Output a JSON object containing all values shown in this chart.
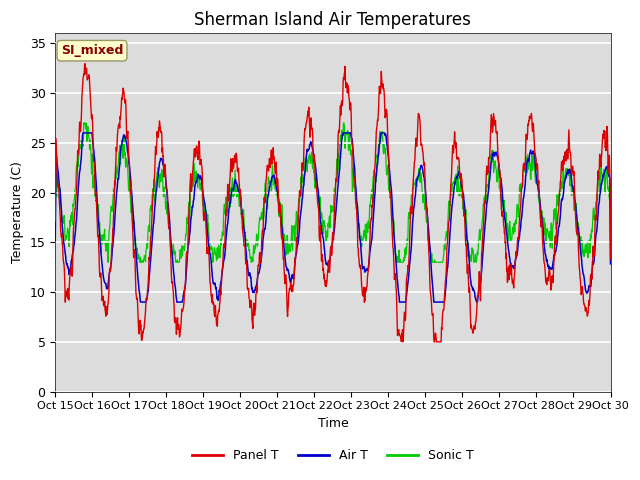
{
  "title": "Sherman Island Air Temperatures",
  "xlabel": "Time",
  "ylabel": "Temperature (C)",
  "ylim": [
    0,
    36
  ],
  "yticks": [
    0,
    5,
    10,
    15,
    20,
    25,
    30,
    35
  ],
  "xlim": [
    0,
    360
  ],
  "xtick_positions": [
    0,
    24,
    48,
    72,
    96,
    120,
    144,
    168,
    192,
    216,
    240,
    264,
    288,
    312,
    336,
    360
  ],
  "xtick_labels": [
    "Oct 15",
    "Oct 16",
    "Oct 17",
    "Oct 18",
    "Oct 19",
    "Oct 20",
    "Oct 21",
    "Oct 22",
    "Oct 23",
    "Oct 24",
    "Oct 25",
    "Oct 26",
    "Oct 27",
    "Oct 28",
    "Oct 29",
    "Oct 30"
  ],
  "panel_color": "#dd0000",
  "air_color": "#0000cc",
  "sonic_color": "#00cc00",
  "bg_color": "#dcdcdc",
  "legend_label_SI": "SI_mixed",
  "legend_label_panel": "Panel T",
  "legend_label_air": "Air T",
  "legend_label_sonic": "Sonic T",
  "figsize": [
    6.4,
    4.8
  ],
  "dpi": 100
}
